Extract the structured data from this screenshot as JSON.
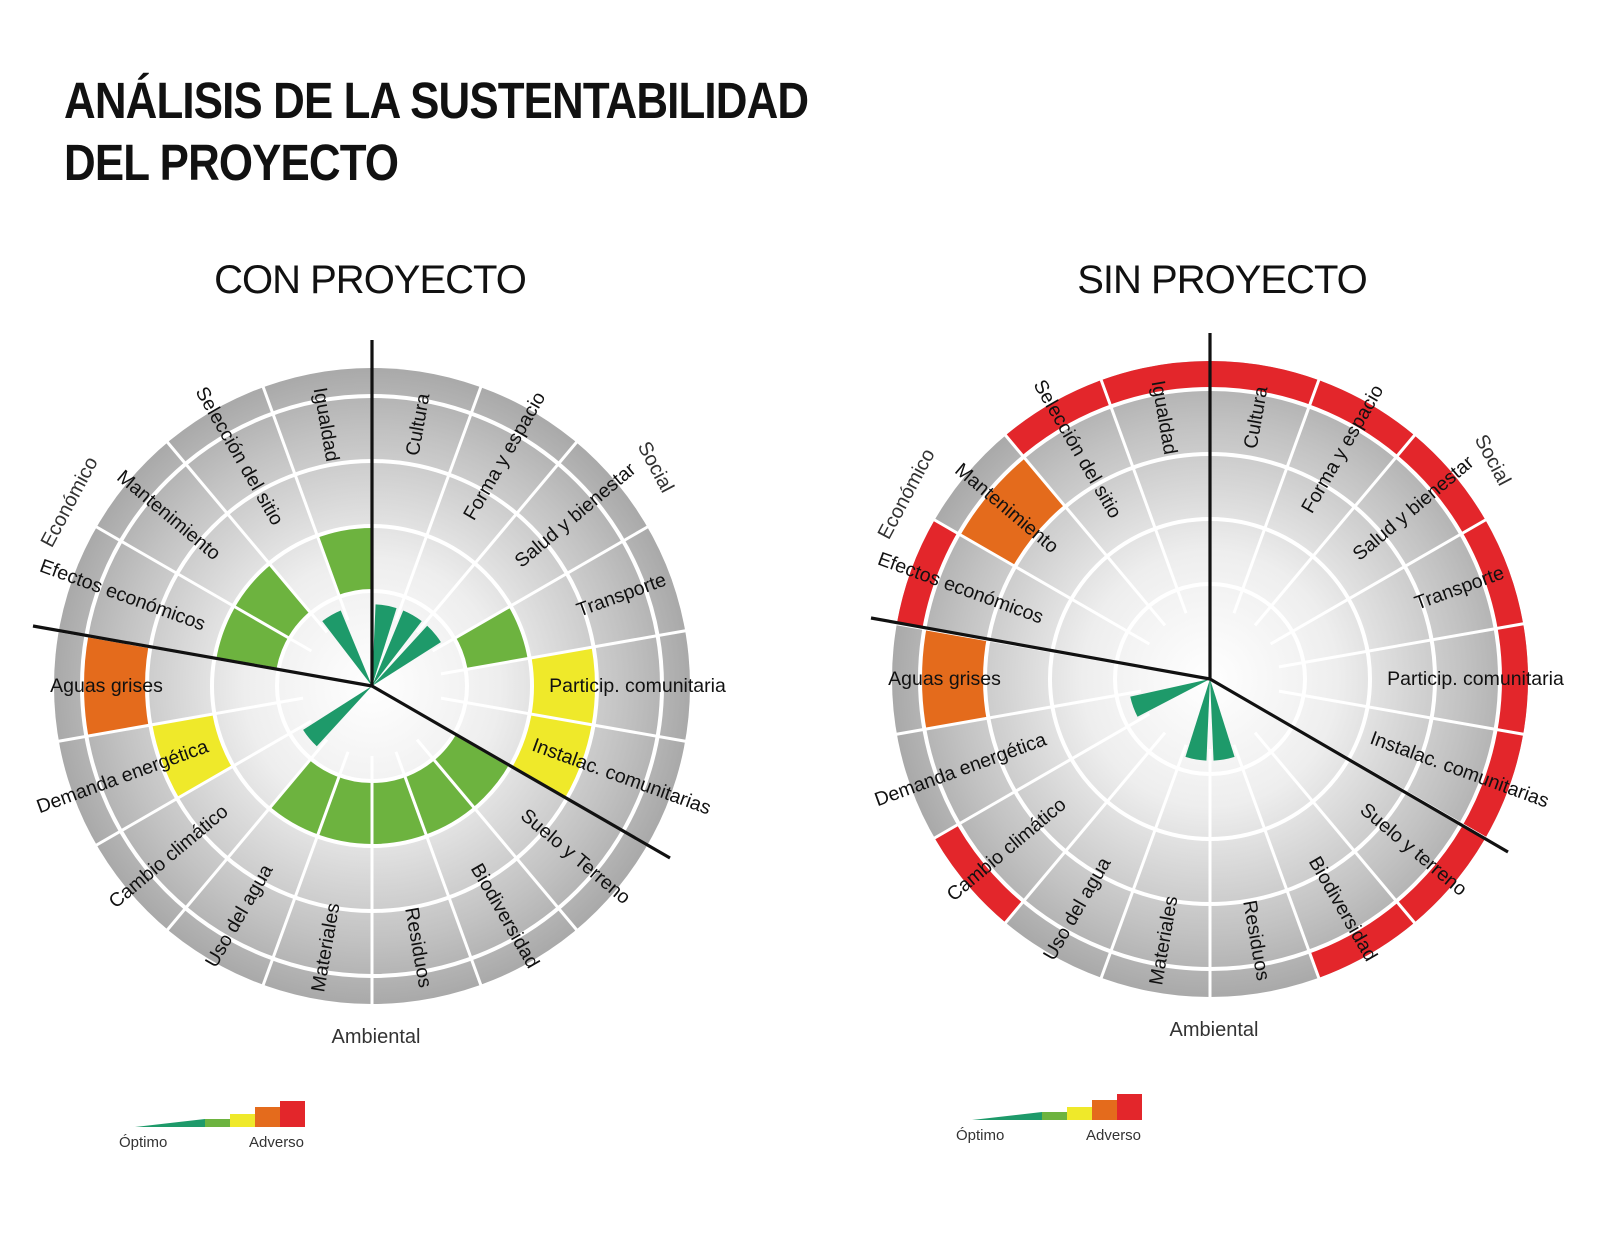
{
  "title": {
    "line1": "ANÁLISIS DE LA SUSTENTABILIDAD",
    "line2": "DEL PROYECTO"
  },
  "level_colors": [
    "#1e9a6a",
    "#6db33f",
    "#efe92a",
    "#e46b1c",
    "#e3262b"
  ],
  "chart_data": [
    {
      "type": "polar-bar",
      "title": "CON PROYECTO",
      "scale": {
        "levels": 5,
        "min_label": "Óptimo",
        "max_label": "Adverso"
      },
      "dimensions": [
        "Social",
        "Económico",
        "Ambiental"
      ],
      "indicators": [
        {
          "label": "Cultura",
          "dimension": "Social",
          "value": 1
        },
        {
          "label": "Forma y espacio",
          "dimension": "Social",
          "value": 1
        },
        {
          "label": "Salud y bienestar",
          "dimension": "Social",
          "value": 1
        },
        {
          "label": "Transporte",
          "dimension": "Social",
          "value": 2
        },
        {
          "label": "Particip. comunitaria",
          "dimension": "Social",
          "value": 3
        },
        {
          "label": "Instalac. comunitarias",
          "dimension": "Social",
          "value": 3
        },
        {
          "label": "Suelo y Terreno",
          "dimension": "Ambiental",
          "value": 2
        },
        {
          "label": "Biodiversidad",
          "dimension": "Ambiental",
          "value": 2
        },
        {
          "label": "Residuos",
          "dimension": "Ambiental",
          "value": 2
        },
        {
          "label": "Materiales",
          "dimension": "Ambiental",
          "value": 2
        },
        {
          "label": "Uso del agua",
          "dimension": "Ambiental",
          "value": 2
        },
        {
          "label": "Cambio climático",
          "dimension": "Ambiental",
          "value": 1
        },
        {
          "label": "Demanda energética",
          "dimension": "Económico",
          "value": 3
        },
        {
          "label": "Aguas grises",
          "dimension": "Económico",
          "value": 4
        },
        {
          "label": "Efectos económicos",
          "dimension": "Económico",
          "value": 2
        },
        {
          "label": "Mantenimiento",
          "dimension": "Económico",
          "value": 2
        },
        {
          "label": "Selección del sitio",
          "dimension": "Económico",
          "value": 1
        },
        {
          "label": "Igualdad",
          "dimension": "Social",
          "value": 2
        }
      ]
    },
    {
      "type": "polar-bar",
      "title": "SIN PROYECTO",
      "scale": {
        "levels": 5,
        "min_label": "Óptimo",
        "max_label": "Adverso"
      },
      "dimensions": [
        "Social",
        "Económico",
        "Ambiental"
      ],
      "indicators": [
        {
          "label": "Cultura",
          "dimension": "Social",
          "value": 5
        },
        {
          "label": "Forma y espacio",
          "dimension": "Social",
          "value": 5
        },
        {
          "label": "Salud y bienestar",
          "dimension": "Social",
          "value": 5
        },
        {
          "label": "Transporte",
          "dimension": "Social",
          "value": 5
        },
        {
          "label": "Particip. comunitaria",
          "dimension": "Social",
          "value": 5
        },
        {
          "label": "Instalac. comunitarias",
          "dimension": "Social",
          "value": 5
        },
        {
          "label": "Suelo y terreno",
          "dimension": "Ambiental",
          "value": 5
        },
        {
          "label": "Biodiversidad",
          "dimension": "Ambiental",
          "value": 5
        },
        {
          "label": "Residuos",
          "dimension": "Ambiental",
          "value": 1
        },
        {
          "label": "Materiales",
          "dimension": "Ambiental",
          "value": 1
        },
        {
          "label": "Uso del agua",
          "dimension": "Ambiental",
          "value": 0
        },
        {
          "label": "Cambio climático",
          "dimension": "Ambiental",
          "value": 5
        },
        {
          "label": "Demanda energética",
          "dimension": "Económico",
          "value": 1
        },
        {
          "label": "Aguas grises",
          "dimension": "Económico",
          "value": 4
        },
        {
          "label": "Efectos económicos",
          "dimension": "Económico",
          "value": 5
        },
        {
          "label": "Mantenimiento",
          "dimension": "Económico",
          "value": 4
        },
        {
          "label": "Selección del sitio",
          "dimension": "Económico",
          "value": 5
        },
        {
          "label": "Igualdad",
          "dimension": "Social",
          "value": 5
        }
      ]
    }
  ]
}
